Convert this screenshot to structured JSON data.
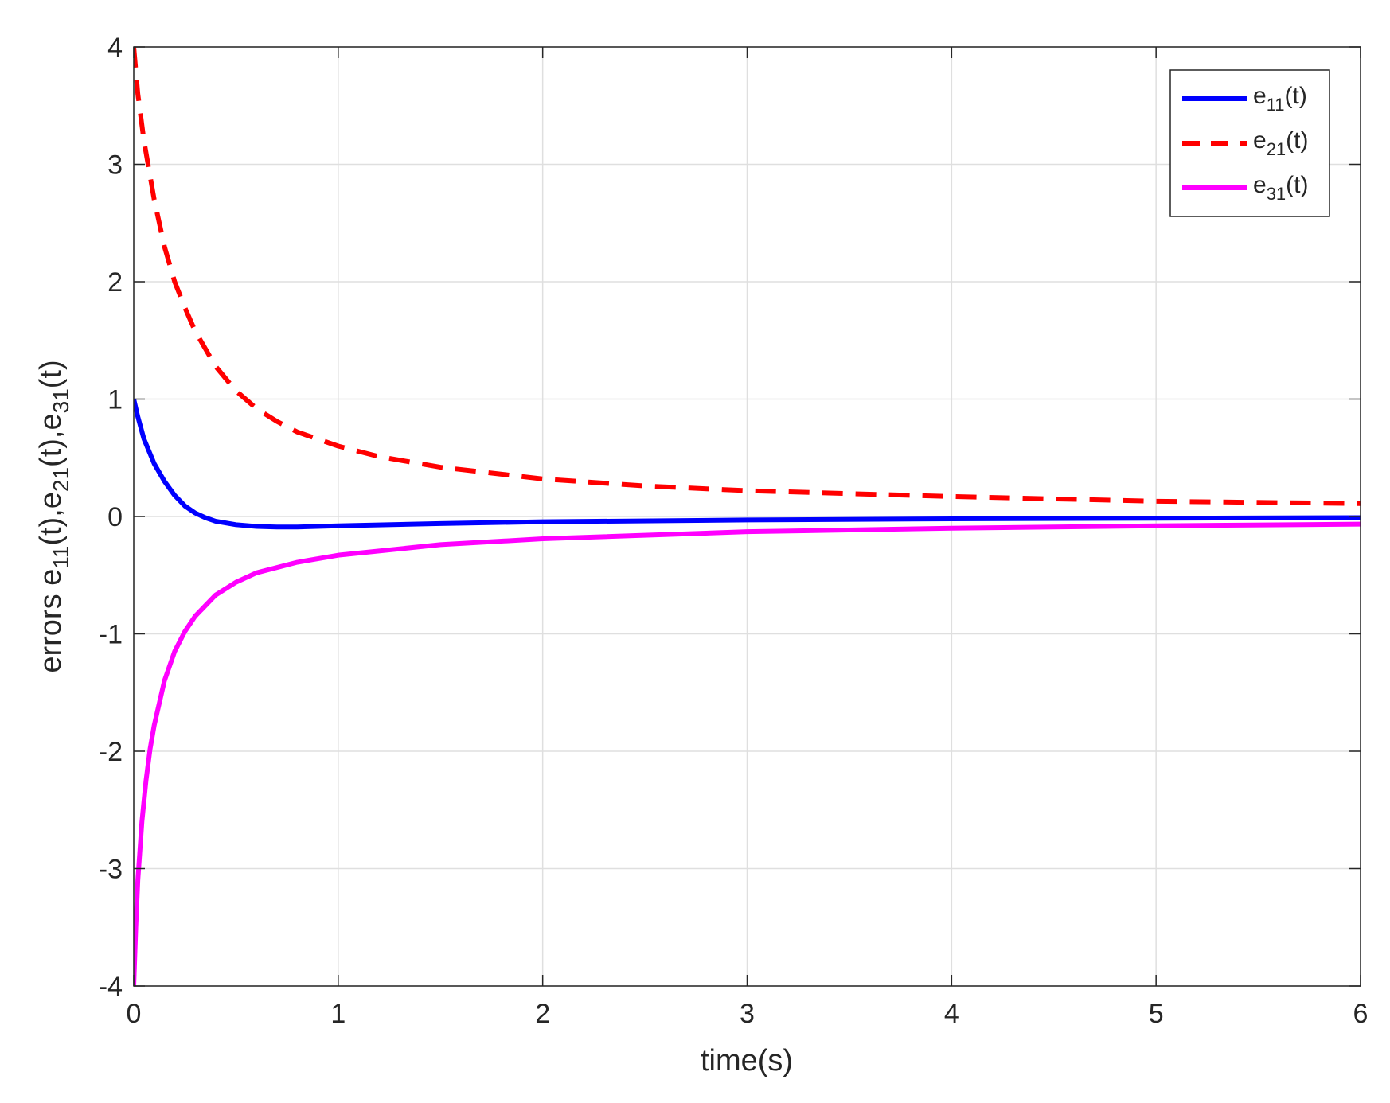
{
  "chart_data": {
    "type": "line",
    "xlabel": "time(s)",
    "ylabel": {
      "parts": [
        {
          "t": "errors e"
        },
        {
          "t": "11",
          "sub": true
        },
        {
          "t": "(t),e"
        },
        {
          "t": "21",
          "sub": true
        },
        {
          "t": "(t),e"
        },
        {
          "t": "31",
          "sub": true
        },
        {
          "t": "(t)"
        }
      ]
    },
    "xlim": [
      0,
      6
    ],
    "ylim": [
      -4,
      4
    ],
    "xticks": [
      "0",
      "1",
      "2",
      "3",
      "4",
      "5",
      "6"
    ],
    "yticks": [
      "-4",
      "-3",
      "-2",
      "-1",
      "0",
      "1",
      "2",
      "3",
      "4"
    ],
    "grid": true,
    "legend_position": "top-right",
    "series": [
      {
        "name": "e11(t)",
        "label": {
          "base": "e",
          "sub": "11",
          "suffix": "(t)"
        },
        "color": "#0000ff",
        "style": "solid",
        "x": [
          0,
          0.02,
          0.05,
          0.1,
          0.15,
          0.2,
          0.25,
          0.3,
          0.35,
          0.4,
          0.5,
          0.6,
          0.7,
          0.8,
          1.0,
          1.5,
          2.0,
          3.0,
          4.0,
          5.0,
          6.0
        ],
        "y": [
          1.0,
          0.85,
          0.66,
          0.45,
          0.3,
          0.18,
          0.09,
          0.03,
          -0.01,
          -0.04,
          -0.07,
          -0.085,
          -0.09,
          -0.09,
          -0.08,
          -0.06,
          -0.045,
          -0.03,
          -0.02,
          -0.015,
          -0.01
        ]
      },
      {
        "name": "e21(t)",
        "label": {
          "base": "e",
          "sub": "21",
          "suffix": "(t)"
        },
        "color": "#ff0000",
        "style": "dashed",
        "x": [
          0,
          0.02,
          0.05,
          0.1,
          0.15,
          0.2,
          0.25,
          0.3,
          0.4,
          0.5,
          0.6,
          0.7,
          0.8,
          1.0,
          1.2,
          1.5,
          2.0,
          2.5,
          3.0,
          4.0,
          5.0,
          6.0
        ],
        "y": [
          4.0,
          3.6,
          3.2,
          2.7,
          2.3,
          2.0,
          1.78,
          1.58,
          1.28,
          1.07,
          0.92,
          0.81,
          0.72,
          0.6,
          0.51,
          0.42,
          0.32,
          0.26,
          0.22,
          0.17,
          0.13,
          0.11
        ]
      },
      {
        "name": "e31(t)",
        "label": {
          "base": "e",
          "sub": "31",
          "suffix": "(t)"
        },
        "color": "#ff00ff",
        "style": "solid",
        "x": [
          0,
          0.01,
          0.02,
          0.04,
          0.06,
          0.08,
          0.1,
          0.15,
          0.2,
          0.25,
          0.3,
          0.4,
          0.5,
          0.6,
          0.8,
          1.0,
          1.5,
          2.0,
          3.0,
          4.0,
          5.0,
          6.0
        ],
        "y": [
          -4.0,
          -3.5,
          -3.1,
          -2.6,
          -2.25,
          -1.98,
          -1.78,
          -1.4,
          -1.15,
          -0.98,
          -0.85,
          -0.67,
          -0.56,
          -0.48,
          -0.39,
          -0.33,
          -0.24,
          -0.19,
          -0.13,
          -0.1,
          -0.08,
          -0.065
        ]
      }
    ]
  }
}
